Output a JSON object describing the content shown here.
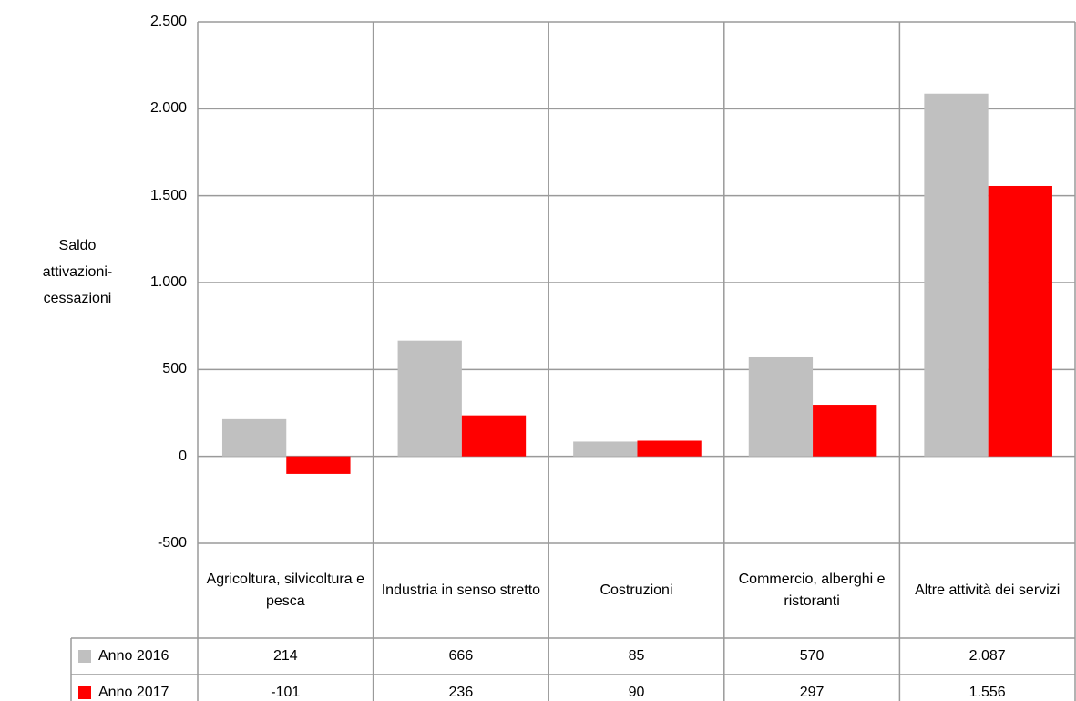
{
  "chart_data": {
    "type": "bar",
    "y_label": "Saldo attivazioni-cessazioni",
    "categories": [
      "Agricoltura, silvicoltura e pesca",
      "Industria in senso stretto",
      "Costruzioni",
      "Commercio, alberghi e ristoranti",
      "Altre attività dei servizi"
    ],
    "series": [
      {
        "name": "Anno 2016",
        "color": "#c0c0c0",
        "values": [
          214,
          666,
          85,
          570,
          2087
        ],
        "value_labels": [
          "214",
          "666",
          "85",
          "570",
          "2.087"
        ]
      },
      {
        "name": "Anno 2017",
        "color": "#ff0000",
        "values": [
          -101,
          236,
          90,
          297,
          1556
        ],
        "value_labels": [
          "-101",
          "236",
          "90",
          "297",
          "1.556"
        ]
      }
    ],
    "ylim": [
      -500,
      2500
    ],
    "yticks": [
      -500,
      0,
      500,
      {
        "value": 1000,
        "label": "1.000"
      },
      {
        "value": 1500,
        "label": "1.500"
      },
      {
        "value": 2000,
        "label": "2.000"
      },
      {
        "value": 2500,
        "label": "2.500"
      }
    ],
    "grid": true
  }
}
